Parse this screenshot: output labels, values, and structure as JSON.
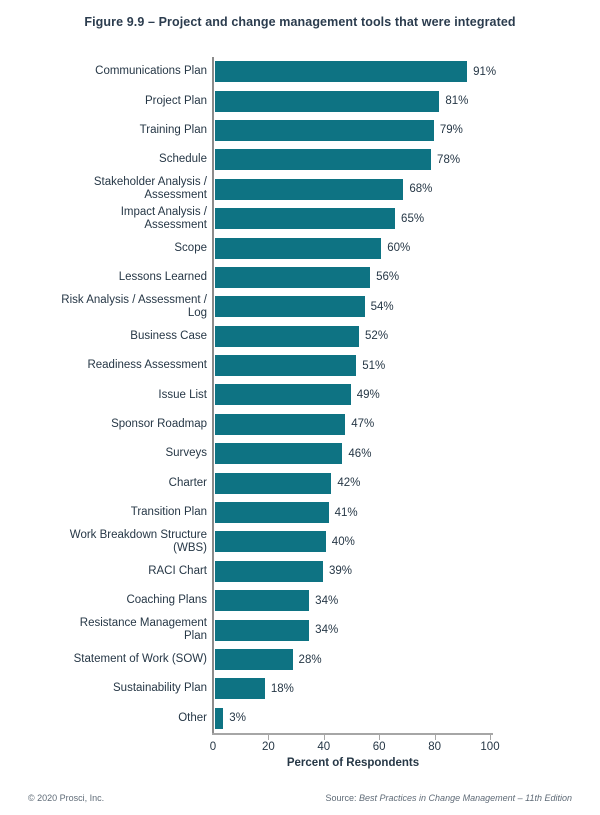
{
  "title": "Figure 9.9 – Project and change management tools that were integrated",
  "chart_data": {
    "type": "bar",
    "orientation": "horizontal",
    "title": "Figure 9.9 – Project and change management tools that were integrated",
    "categories": [
      "Communications Plan",
      "Project Plan",
      "Training Plan",
      "Schedule",
      "Stakeholder Analysis / Assessment",
      "Impact Analysis / Assessment",
      "Scope",
      "Lessons Learned",
      "Risk Analysis / Assessment / Log",
      "Business Case",
      "Readiness Assessment",
      "Issue List",
      "Sponsor Roadmap",
      "Surveys",
      "Charter",
      "Transition Plan",
      "Work Breakdown Structure (WBS)",
      "RACI Chart",
      "Coaching Plans",
      "Resistance Management Plan",
      "Statement of Work (SOW)",
      "Sustainability Plan",
      "Other"
    ],
    "values": [
      91,
      81,
      79,
      78,
      68,
      65,
      60,
      56,
      54,
      52,
      51,
      49,
      47,
      46,
      42,
      41,
      40,
      39,
      34,
      34,
      28,
      18,
      3
    ],
    "value_suffix": "%",
    "xlabel": "Percent of Respondents",
    "xlim": [
      0,
      100
    ],
    "xticks": [
      0,
      20,
      40,
      60,
      80,
      100
    ],
    "legend": "none",
    "grid": "off",
    "bar_color": "#0e7383"
  },
  "colors": {
    "bar": "#0e7383",
    "text": "#263746",
    "title_text": "#2b3c4e",
    "axis_line": "#a6a6a6",
    "axis_vline": "#8c8c8c",
    "footer_text": "#5f6b77",
    "background": "#ffffff"
  },
  "footer": {
    "copyright": "© 2020 Prosci, Inc.",
    "source_prefix": "Source: ",
    "source_title": "Best Practices in Change Management – 11th Edition"
  }
}
